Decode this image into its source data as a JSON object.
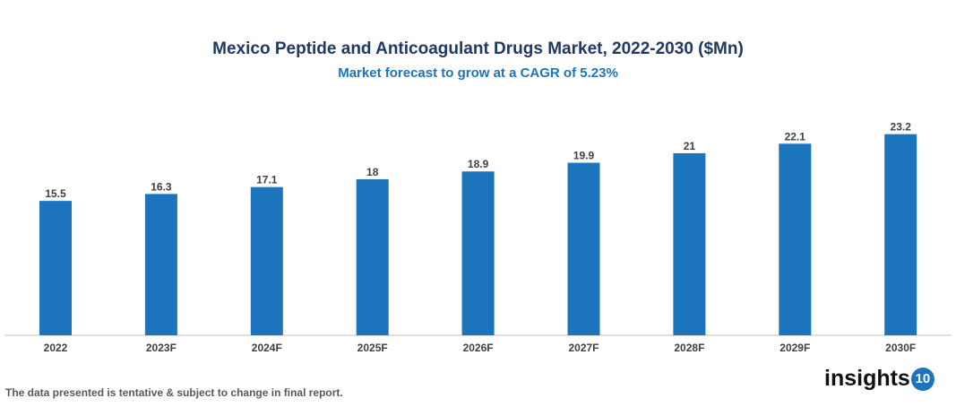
{
  "chart_data": {
    "type": "bar",
    "title": "Mexico Peptide and Anticoagulant Drugs Market, 2022-2030 ($Mn)",
    "subtitle": "Market forecast to grow at a CAGR of 5.23%",
    "categories": [
      "2022",
      "2023F",
      "2024F",
      "2025F",
      "2026F",
      "2027F",
      "2028F",
      "2029F",
      "2030F"
    ],
    "values": [
      15.5,
      16.3,
      17.1,
      18,
      18.9,
      19.9,
      21,
      22.1,
      23.2
    ],
    "xlabel": "",
    "ylabel": "",
    "ylim": [
      0,
      27.5
    ],
    "grid": false,
    "bar_color": "#1c75bc"
  },
  "footnote": "The data presented is tentative & subject to change in final report.",
  "logo": {
    "text": "insights",
    "badge": "10"
  }
}
